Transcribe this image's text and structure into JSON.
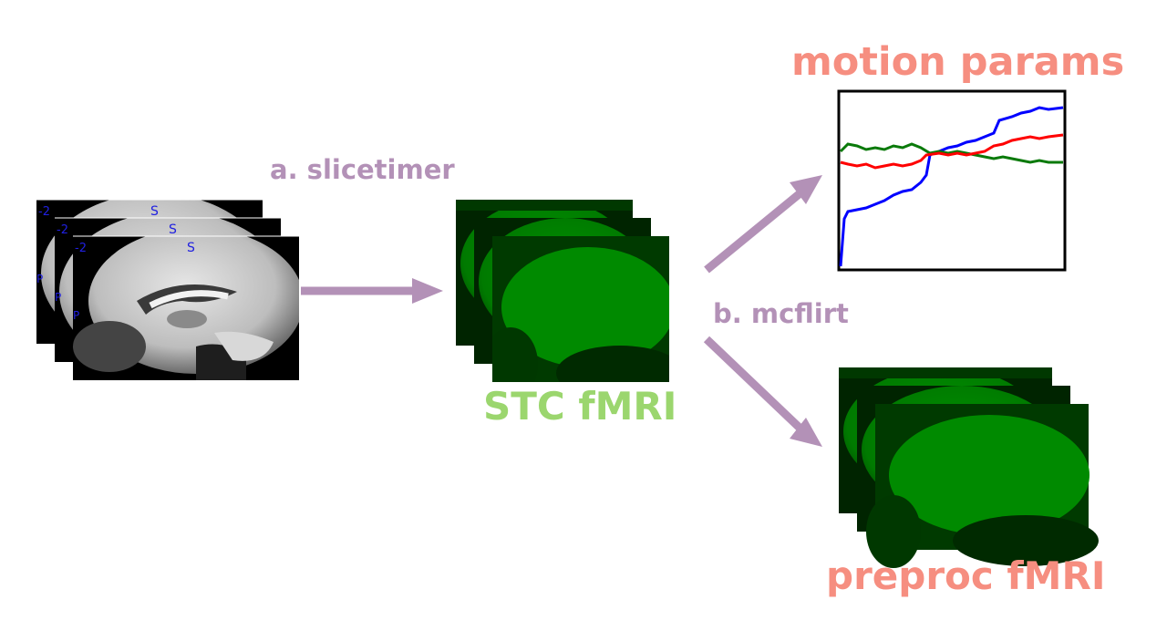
{
  "labels": {
    "step_a": "a. slicetimer",
    "step_b": "b. mcflirt",
    "stc_output": "STC fMRI",
    "motion_output": "motion params",
    "preproc_output": "preproc fMRI"
  },
  "anatomical_slices": [
    {
      "orientation_left": "-2",
      "orientation_top": "S",
      "orientation_side": "P"
    },
    {
      "orientation_left": "-2",
      "orientation_top": "S",
      "orientation_side": "P"
    },
    {
      "orientation_left": "-2",
      "orientation_top": "S",
      "orientation_side": "P"
    }
  ],
  "colors": {
    "arrow": "#b391b7",
    "step_text": "#b391b7",
    "stc_text": "#9bd66e",
    "output_text": "#f68e80",
    "fmri_green": "#008a00",
    "motion_blue": "#0000ff",
    "motion_red": "#ff0000",
    "motion_green": "#0a7a0a"
  }
}
